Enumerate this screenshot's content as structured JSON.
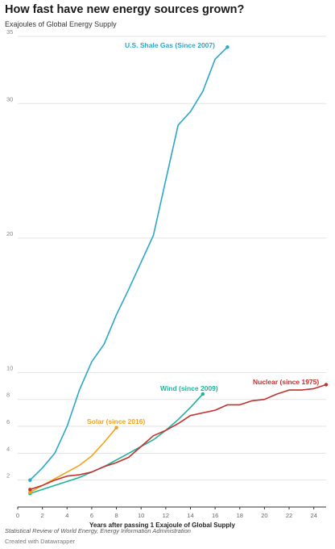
{
  "header": {
    "title": "How fast have new energy sources grown?",
    "subtitle": "Exajoules of Global Energy Supply"
  },
  "footer": {
    "source": "Statistical Review of World Energy, Energy Information Administration",
    "credit": "Created with Datawrapper"
  },
  "chart_data": {
    "type": "line",
    "title": "How fast have new energy sources grown?",
    "subtitle": "Exajoules of Global Energy Supply",
    "xlabel": "Years after passing 1 Exajoule of Global Supply",
    "ylabel": "",
    "xlim": [
      0,
      25
    ],
    "ylim": [
      0,
      35
    ],
    "x_ticks": [
      0,
      2,
      4,
      6,
      8,
      10,
      12,
      14,
      16,
      18,
      20,
      22,
      24
    ],
    "y_ticks": [
      2,
      4,
      6,
      8,
      10,
      20,
      30,
      35
    ],
    "grid": true,
    "legend": "inline labels at line ends",
    "series": [
      {
        "name": "U.S. Shale Gas (Since 2007)",
        "color": "#2ca6c9",
        "x": [
          1,
          2,
          3,
          4,
          5,
          6,
          7,
          8,
          9,
          10,
          11,
          12,
          13,
          14,
          15,
          16,
          17
        ],
        "y": [
          2.0,
          2.9,
          4.0,
          6.0,
          8.7,
          10.8,
          12.1,
          14.3,
          16.2,
          18.2,
          20.2,
          24.3,
          28.4,
          29.4,
          30.9,
          33.3,
          34.2
        ]
      },
      {
        "name": "Wind (since 2009)",
        "color": "#1fb29a",
        "x": [
          1,
          2,
          3,
          4,
          5,
          6,
          7,
          8,
          9,
          10,
          11,
          12,
          13,
          14,
          15
        ],
        "y": [
          1.0,
          1.3,
          1.6,
          1.9,
          2.2,
          2.6,
          3.0,
          3.5,
          4.0,
          4.5,
          5.0,
          5.7,
          6.5,
          7.4,
          8.4
        ]
      },
      {
        "name": "Solar (since 2016)",
        "color": "#f2a21c",
        "x": [
          1,
          2,
          3,
          4,
          5,
          6,
          7,
          8
        ],
        "y": [
          1.1,
          1.6,
          2.1,
          2.6,
          3.1,
          3.8,
          4.8,
          5.9
        ]
      },
      {
        "name": "Nuclear (since 1975)",
        "color": "#c4302b",
        "x": [
          1,
          2,
          3,
          4,
          5,
          6,
          7,
          8,
          9,
          10,
          11,
          12,
          13,
          14,
          15,
          16,
          17,
          18,
          19,
          20,
          21,
          22,
          23,
          24,
          25
        ],
        "y": [
          1.3,
          1.6,
          2.0,
          2.3,
          2.4,
          2.6,
          3.0,
          3.3,
          3.7,
          4.5,
          5.3,
          5.7,
          6.2,
          6.8,
          7.0,
          7.2,
          7.6,
          7.6,
          7.9,
          8.0,
          8.4,
          8.7,
          8.7,
          8.8,
          9.1
        ]
      }
    ]
  }
}
